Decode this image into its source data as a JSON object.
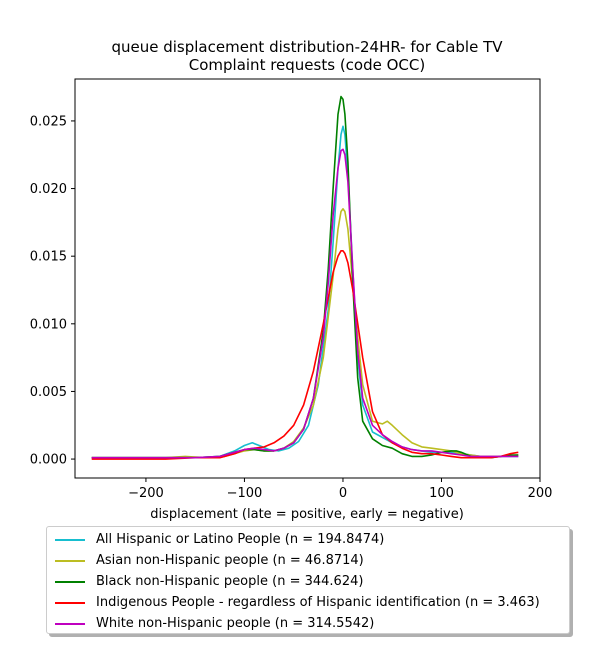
{
  "chart_data": {
    "type": "line",
    "title": "queue displacement distribution-24HR-  for Cable TV\nComplaint  requests (code OCC)",
    "xlabel": "displacement (late = positive, early = negative)",
    "ylabel": "",
    "xlim": [
      -272,
      200
    ],
    "ylim": [
      -0.0014,
      0.0281
    ],
    "xticks": [
      -200,
      -100,
      0,
      100,
      200
    ],
    "yticks": [
      0.0,
      0.005,
      0.01,
      0.015,
      0.02,
      0.025
    ],
    "ytick_labels": [
      "0.000",
      "0.005",
      "0.010",
      "0.015",
      "0.020",
      "0.025"
    ],
    "grid": false,
    "legend_position": "below",
    "series": [
      {
        "name": "All Hispanic or Latino People (n = 194.8474)",
        "color": "#17becf",
        "x": [
          -255,
          -220,
          -180,
          -150,
          -125,
          -110,
          -100,
          -92,
          -85,
          -75,
          -65,
          -55,
          -45,
          -35,
          -25,
          -15,
          -10,
          -5,
          -2,
          0,
          2,
          5,
          10,
          15,
          20,
          30,
          40,
          50,
          60,
          70,
          80,
          90,
          100,
          110,
          120,
          130,
          140,
          150,
          160,
          170,
          178
        ],
        "y": [
          0.0001,
          0.0001,
          0.0001,
          0.0001,
          0.0002,
          0.0006,
          0.001,
          0.0012,
          0.001,
          0.0007,
          0.0006,
          0.0008,
          0.0013,
          0.0025,
          0.0055,
          0.011,
          0.016,
          0.0215,
          0.024,
          0.0246,
          0.024,
          0.021,
          0.014,
          0.0075,
          0.004,
          0.002,
          0.0016,
          0.0012,
          0.0009,
          0.0007,
          0.0006,
          0.0005,
          0.0005,
          0.0005,
          0.0004,
          0.0003,
          0.0002,
          0.0002,
          0.0002,
          0.0002,
          0.0002
        ]
      },
      {
        "name": "Asian non-Hispanic people (n = 46.8714)",
        "color": "#bcbd22",
        "x": [
          -255,
          -220,
          -180,
          -160,
          -140,
          -120,
          -100,
          -90,
          -80,
          -70,
          -60,
          -50,
          -40,
          -30,
          -20,
          -10,
          -5,
          -2,
          0,
          2,
          5,
          10,
          15,
          20,
          30,
          40,
          45,
          50,
          60,
          70,
          80,
          90,
          100,
          110,
          120,
          140,
          160,
          178
        ],
        "y": [
          0.0001,
          0.0001,
          0.0001,
          0.0002,
          0.0001,
          0.0002,
          0.0006,
          0.0007,
          0.0006,
          0.0006,
          0.0008,
          0.0013,
          0.0023,
          0.004,
          0.0075,
          0.0135,
          0.017,
          0.0183,
          0.0185,
          0.0183,
          0.017,
          0.013,
          0.009,
          0.0055,
          0.0028,
          0.0026,
          0.0028,
          0.0025,
          0.0018,
          0.0012,
          0.0009,
          0.0008,
          0.0007,
          0.0006,
          0.0004,
          0.0002,
          0.0002,
          0.0003
        ]
      },
      {
        "name": "Black non-Hispanic people (n = 344.624)",
        "color": "#008000",
        "x": [
          -255,
          -220,
          -180,
          -150,
          -125,
          -110,
          -100,
          -90,
          -80,
          -70,
          -60,
          -50,
          -40,
          -30,
          -20,
          -15,
          -10,
          -5,
          -2,
          0,
          2,
          5,
          10,
          15,
          20,
          30,
          40,
          50,
          60,
          70,
          80,
          90,
          100,
          110,
          115,
          120,
          130,
          140,
          150,
          160,
          170,
          178
        ],
        "y": [
          0.0001,
          0.0001,
          0.0001,
          0.0001,
          0.0002,
          0.0005,
          0.0007,
          0.0007,
          0.0006,
          0.0006,
          0.0008,
          0.0012,
          0.0022,
          0.0045,
          0.0095,
          0.014,
          0.02,
          0.0255,
          0.0268,
          0.0266,
          0.0255,
          0.022,
          0.013,
          0.006,
          0.0028,
          0.0015,
          0.001,
          0.0008,
          0.0004,
          0.0002,
          0.0002,
          0.0003,
          0.0005,
          0.0006,
          0.0006,
          0.0005,
          0.0002,
          0.0001,
          0.0001,
          0.0002,
          0.0003,
          0.0003
        ]
      },
      {
        "name": "Indigenous People - regardless of Hispanic identification (n = 3.463)",
        "color": "#ff0000",
        "x": [
          -255,
          -220,
          -180,
          -150,
          -125,
          -110,
          -100,
          -90,
          -80,
          -70,
          -60,
          -50,
          -40,
          -30,
          -20,
          -10,
          -5,
          -2,
          0,
          2,
          5,
          10,
          20,
          30,
          40,
          50,
          60,
          70,
          80,
          90,
          100,
          110,
          120,
          130,
          140,
          150,
          160,
          170,
          178
        ],
        "y": [
          0.0,
          0.0,
          0.0,
          0.0001,
          0.0001,
          0.0004,
          0.0007,
          0.0008,
          0.0009,
          0.0012,
          0.0017,
          0.0025,
          0.004,
          0.0065,
          0.01,
          0.0138,
          0.015,
          0.0154,
          0.0154,
          0.0152,
          0.0145,
          0.0125,
          0.0075,
          0.0035,
          0.0018,
          0.0012,
          0.0008,
          0.0005,
          0.0004,
          0.0004,
          0.0003,
          0.0002,
          0.0001,
          0.0001,
          0.0001,
          0.0001,
          0.0002,
          0.0004,
          0.0005
        ]
      },
      {
        "name": "White non-Hispanic people (n = 314.5542)",
        "color": "#bf00bf",
        "x": [
          -255,
          -220,
          -180,
          -150,
          -125,
          -110,
          -100,
          -90,
          -80,
          -70,
          -60,
          -50,
          -40,
          -30,
          -20,
          -15,
          -10,
          -5,
          -2,
          0,
          2,
          5,
          10,
          15,
          20,
          30,
          40,
          50,
          60,
          70,
          80,
          90,
          100,
          110,
          120,
          130,
          140,
          150,
          160,
          170,
          178
        ],
        "y": [
          0.0001,
          0.0001,
          0.0001,
          0.0001,
          0.0002,
          0.0005,
          0.0007,
          0.0008,
          0.0007,
          0.0006,
          0.0008,
          0.0012,
          0.0022,
          0.0045,
          0.009,
          0.013,
          0.018,
          0.0215,
          0.0228,
          0.0229,
          0.0225,
          0.0205,
          0.014,
          0.008,
          0.0045,
          0.0025,
          0.0018,
          0.0013,
          0.0009,
          0.0007,
          0.0006,
          0.0006,
          0.0005,
          0.0004,
          0.0003,
          0.0002,
          0.0002,
          0.0002,
          0.0002,
          0.0002,
          0.0002
        ]
      }
    ]
  }
}
